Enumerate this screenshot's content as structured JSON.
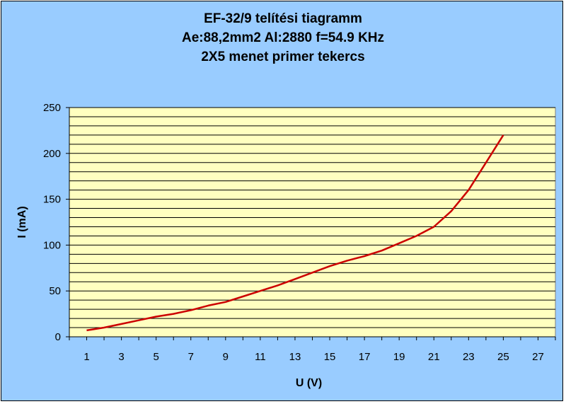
{
  "chart_data": {
    "type": "line",
    "title_lines": [
      "EF-32/9 telítési tiagramm",
      "Ae:88,2mm2 Al:2880 f=54.9 KHz",
      "2X5 menet primer tekercs"
    ],
    "xlabel": "U (V)",
    "ylabel": "I (mA)",
    "xlim": [
      0,
      28
    ],
    "ylim": [
      0,
      250
    ],
    "x_tick_labels": [
      "1",
      "3",
      "5",
      "7",
      "9",
      "11",
      "13",
      "15",
      "17",
      "19",
      "21",
      "23",
      "25",
      "27"
    ],
    "y_tick_labels": [
      "0",
      "50",
      "100",
      "150",
      "200",
      "250"
    ],
    "grid": true,
    "legend": "none",
    "series": [
      {
        "x": [
          1,
          2,
          3,
          4,
          5,
          6,
          7,
          8,
          9,
          10,
          11,
          12,
          13,
          14,
          15,
          16,
          17,
          18,
          19,
          20,
          21,
          22,
          23,
          24,
          25
        ],
        "y": [
          7,
          10,
          14,
          18,
          22,
          25,
          29,
          34,
          38,
          44,
          50,
          56,
          63,
          70,
          77,
          83,
          88,
          94,
          102,
          110,
          120,
          137,
          160,
          190,
          220
        ]
      }
    ],
    "colors": {
      "line": "#cc0000",
      "plot_bg": "#ffffc0",
      "chart_bg": "#99ccff",
      "grid": "#000000"
    }
  }
}
